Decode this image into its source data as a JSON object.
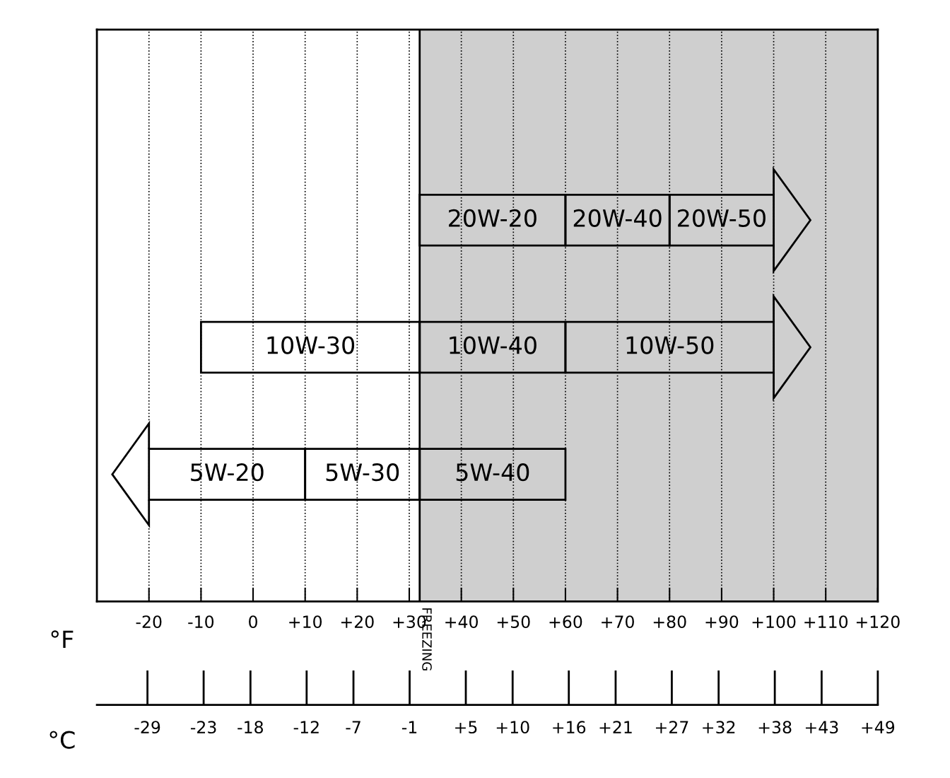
{
  "chart_data": {
    "type": "bar",
    "orientation": "horizontal",
    "categories": [
      null,
      null,
      null
    ],
    "series": [
      {
        "name": "20W-20",
        "color": "#000000",
        "values": [
          28,
          null,
          null
        ],
        "base": [
          32,
          null,
          null
        ]
      },
      {
        "name": "20W-40",
        "color": "#000000",
        "values": [
          20,
          null,
          null
        ],
        "base": [
          60,
          null,
          null
        ]
      },
      {
        "name": "20W-50",
        "color": "#000000",
        "values": [
          20,
          null,
          null
        ],
        "base": [
          80,
          null,
          null
        ]
      },
      {
        "name": "10W-30",
        "color": "#000000",
        "values": [
          null,
          42,
          null
        ],
        "base": [
          null,
          -10,
          null
        ]
      },
      {
        "name": "10W-40",
        "color": "#000000",
        "values": [
          null,
          28,
          null
        ],
        "base": [
          null,
          32,
          null
        ]
      },
      {
        "name": "10W-50",
        "color": "#000000",
        "values": [
          null,
          40,
          null
        ],
        "base": [
          null,
          60,
          null
        ]
      },
      {
        "name": "5W-20",
        "color": "#000000",
        "values": [
          null,
          null,
          30
        ],
        "base": [
          null,
          null,
          -20
        ]
      },
      {
        "name": "5W-30",
        "color": "#000000",
        "values": [
          null,
          null,
          22
        ],
        "base": [
          null,
          null,
          10
        ]
      },
      {
        "name": "5W-40",
        "color": "#000000",
        "values": [
          null,
          null,
          28
        ],
        "base": [
          null,
          null,
          32
        ]
      }
    ],
    "xlabel": "°F",
    "x2label": "°C",
    "xlim": [
      -30,
      120
    ],
    "xticks": [
      -20,
      -10,
      0,
      {
        "value": 10,
        "label": "+10"
      },
      {
        "value": 20,
        "label": "+20"
      },
      {
        "value": 30,
        "label": "+30"
      },
      {
        "value": 40,
        "label": "+40"
      },
      {
        "value": 50,
        "label": "+50"
      },
      {
        "value": 60,
        "label": "+60"
      },
      {
        "value": 70,
        "label": "+70"
      },
      {
        "value": 80,
        "label": "+80"
      },
      {
        "value": 90,
        "label": "+90"
      },
      {
        "value": 100,
        "label": "+100"
      },
      {
        "value": 110,
        "label": "+110"
      },
      {
        "value": 120,
        "label": "+120"
      }
    ],
    "x2lim": [
      -34.4,
      49
    ],
    "x2ticks": [
      -29,
      -23,
      -18,
      -12,
      -7,
      -1,
      {
        "value": 5,
        "label": "+5"
      },
      {
        "value": 10,
        "label": "+10"
      },
      {
        "value": 16,
        "label": "+16"
      },
      {
        "value": 21,
        "label": "+21"
      },
      {
        "value": 27,
        "label": "+27"
      },
      {
        "value": 32,
        "label": "+32"
      },
      {
        "value": 38,
        "label": "+38"
      },
      {
        "value": 43,
        "label": "+43"
      },
      {
        "value": 49,
        "label": "+49"
      }
    ],
    "grid": "x",
    "line_style": "dotted",
    "bands": [
      {
        "axis": "x",
        "from": 32,
        "to": 120,
        "label": "FREEZING",
        "color": "#cfcfcf"
      }
    ]
  }
}
